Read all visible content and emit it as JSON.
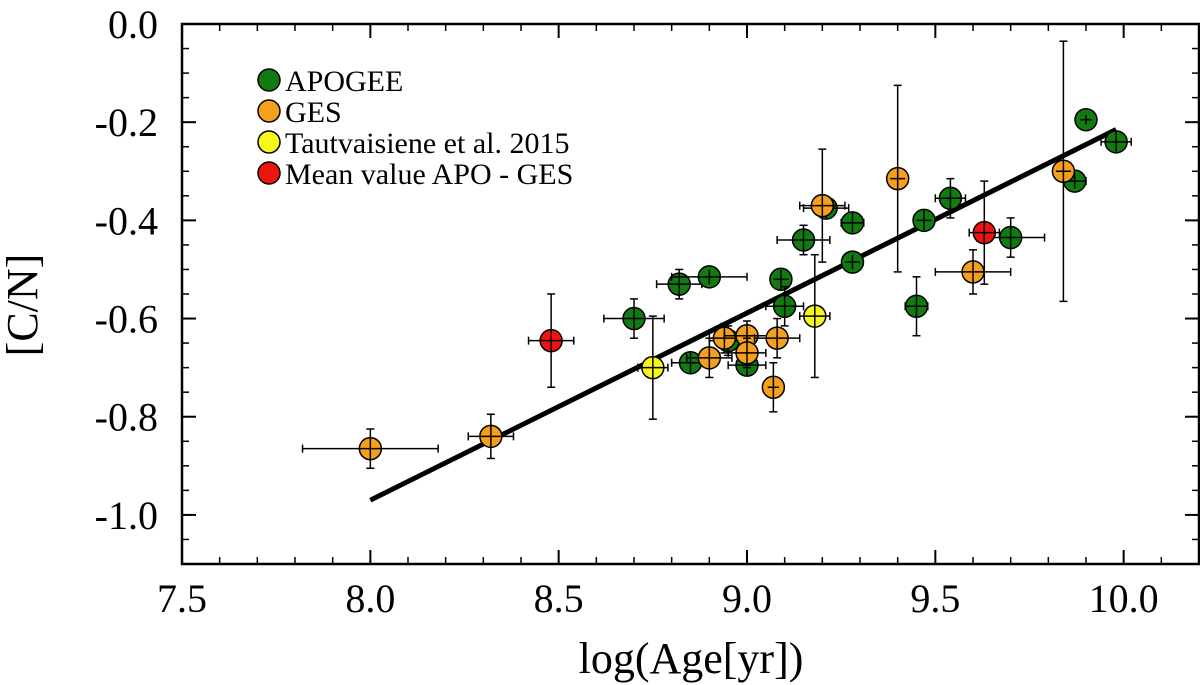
{
  "chart_data": {
    "type": "scatter",
    "title": "",
    "xlabel": "log(Age[yr])",
    "ylabel": "[C/N]",
    "xlim": [
      7.5,
      10.2
    ],
    "ylim": [
      -1.1,
      0.0
    ],
    "xticks": [
      "7.5",
      "8.0",
      "8.5",
      "9.0",
      "9.5",
      "10.0"
    ],
    "yticks": [
      "0.0",
      "-0.2",
      "-0.4",
      "-0.6",
      "-0.8",
      "-1.0"
    ],
    "xtick_values": [
      7.5,
      8.0,
      8.5,
      9.0,
      9.5,
      10.0
    ],
    "ytick_values": [
      0.0,
      -0.2,
      -0.4,
      -0.6,
      -0.8,
      -1.0
    ],
    "legend_position": "top-left",
    "fit_line": {
      "x": [
        8.0,
        9.98
      ],
      "y": [
        -0.97,
        -0.215
      ]
    },
    "series": [
      {
        "name": "APOGEE",
        "color": "#117a11",
        "points": [
          {
            "x": 8.7,
            "y": -0.6,
            "xerr": 0.08,
            "yerr": 0.04
          },
          {
            "x": 8.82,
            "y": -0.53,
            "xerr": 0.06,
            "yerr": 0.03
          },
          {
            "x": 8.85,
            "y": -0.69,
            "xerr": 0.05,
            "yerr": 0.02
          },
          {
            "x": 8.9,
            "y": -0.515,
            "xerr": 0.1,
            "yerr": 0.015
          },
          {
            "x": 8.95,
            "y": -0.645,
            "xerr": 0.05,
            "yerr": 0.03
          },
          {
            "x": 9.0,
            "y": -0.695,
            "xerr": 0.05,
            "yerr": 0.02
          },
          {
            "x": 9.09,
            "y": -0.52,
            "xerr": 0.02,
            "yerr": 0.02
          },
          {
            "x": 9.1,
            "y": -0.575,
            "xerr": 0.05,
            "yerr": 0.04
          },
          {
            "x": 9.15,
            "y": -0.44,
            "xerr": 0.07,
            "yerr": 0.03
          },
          {
            "x": 9.21,
            "y": -0.375,
            "xerr": 0.06,
            "yerr": 0.02
          },
          {
            "x": 9.28,
            "y": -0.405,
            "xerr": 0.03,
            "yerr": 0.02
          },
          {
            "x": 9.28,
            "y": -0.485,
            "xerr": 0.02,
            "yerr": 0.015
          },
          {
            "x": 9.45,
            "y": -0.575,
            "xerr": 0.03,
            "yerr": 0.06
          },
          {
            "x": 9.47,
            "y": -0.4,
            "xerr": 0.02,
            "yerr": 0.02
          },
          {
            "x": 9.54,
            "y": -0.355,
            "xerr": 0.04,
            "yerr": 0.04
          },
          {
            "x": 9.7,
            "y": -0.435,
            "xerr": 0.09,
            "yerr": 0.04
          },
          {
            "x": 9.87,
            "y": -0.32,
            "xerr": 0.03,
            "yerr": 0.015
          },
          {
            "x": 9.9,
            "y": -0.195,
            "xerr": 0.015,
            "yerr": 0.01
          },
          {
            "x": 9.98,
            "y": -0.24,
            "xerr": 0.04,
            "yerr": 0.02
          }
        ]
      },
      {
        "name": "GES",
        "color": "#f5a01c",
        "points": [
          {
            "x": 8.0,
            "y": -0.865,
            "xerr": 0.18,
            "yerr": 0.04
          },
          {
            "x": 8.32,
            "y": -0.84,
            "xerr": 0.06,
            "yerr": 0.045
          },
          {
            "x": 8.9,
            "y": -0.68,
            "xerr": 0.06,
            "yerr": 0.04
          },
          {
            "x": 8.94,
            "y": -0.64,
            "xerr": 0.04,
            "yerr": 0.03
          },
          {
            "x": 9.0,
            "y": -0.635,
            "xerr": 0.06,
            "yerr": 0.03
          },
          {
            "x": 9.0,
            "y": -0.67,
            "xerr": 0.05,
            "yerr": 0.03
          },
          {
            "x": 9.07,
            "y": -0.74,
            "xerr": 0.015,
            "yerr": 0.05
          },
          {
            "x": 9.08,
            "y": -0.64,
            "xerr": 0.06,
            "yerr": 0.04
          },
          {
            "x": 9.2,
            "y": -0.37,
            "xerr": 0.06,
            "yerr": 0.115
          },
          {
            "x": 9.4,
            "y": -0.315,
            "xerr": 0.02,
            "yerr": 0.19
          },
          {
            "x": 9.6,
            "y": -0.505,
            "xerr": 0.1,
            "yerr": 0.045
          },
          {
            "x": 9.84,
            "y": -0.3,
            "xerr": 0.02,
            "yerr": 0.265
          }
        ]
      },
      {
        "name": "Tautvaisiene et al. 2015",
        "color": "#f7f71e",
        "points": [
          {
            "x": 8.75,
            "y": -0.7,
            "xerr": 0.04,
            "yerr": 0.105
          },
          {
            "x": 9.18,
            "y": -0.595,
            "xerr": 0.04,
            "yerr": 0.125
          }
        ]
      },
      {
        "name": "Mean value APO - GES",
        "color": "#f0140f",
        "points": [
          {
            "x": 8.48,
            "y": -0.645,
            "xerr": 0.06,
            "yerr": 0.095
          },
          {
            "x": 9.63,
            "y": -0.425,
            "xerr": 0.04,
            "yerr": 0.105
          }
        ]
      }
    ]
  }
}
